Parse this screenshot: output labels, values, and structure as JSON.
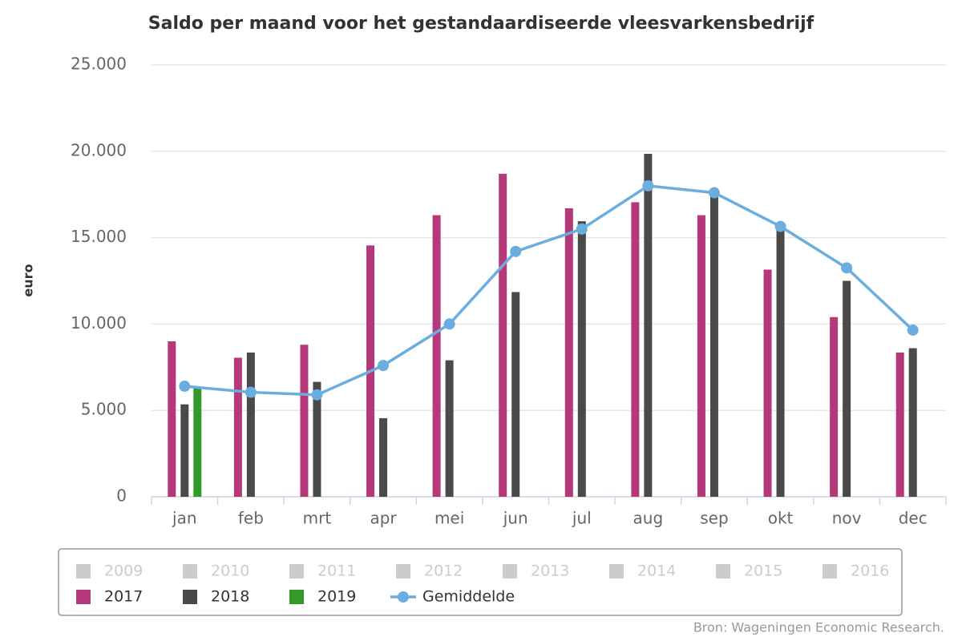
{
  "chart_data": {
    "type": "bar",
    "title": "Saldo per maand voor het gestandaardiseerde vleesvarkensbedrijf",
    "y_label": "euro",
    "source": "Bron: Wageningen Economic Research.",
    "categories": [
      "jan",
      "feb",
      "mrt",
      "apr",
      "mei",
      "jun",
      "jul",
      "aug",
      "sep",
      "okt",
      "nov",
      "dec"
    ],
    "ylim": [
      0,
      25000
    ],
    "yticks": [
      0,
      {
        "value": 5000,
        "label": "5.000"
      },
      {
        "value": 10000,
        "label": "10.000"
      },
      {
        "value": 15000,
        "label": "15.000"
      },
      {
        "value": 20000,
        "label": "20.000"
      },
      {
        "value": 25000,
        "label": "25.000"
      }
    ],
    "grid": true,
    "legend": "bottom",
    "series": [
      {
        "name": "2009",
        "type": "bar",
        "visible": false,
        "color": "#cccccc",
        "values": [
          null,
          null,
          null,
          null,
          null,
          null,
          null,
          null,
          null,
          null,
          null,
          null
        ]
      },
      {
        "name": "2010",
        "type": "bar",
        "visible": false,
        "color": "#cccccc",
        "values": [
          null,
          null,
          null,
          null,
          null,
          null,
          null,
          null,
          null,
          null,
          null,
          null
        ]
      },
      {
        "name": "2011",
        "type": "bar",
        "visible": false,
        "color": "#cccccc",
        "values": [
          null,
          null,
          null,
          null,
          null,
          null,
          null,
          null,
          null,
          null,
          null,
          null
        ]
      },
      {
        "name": "2012",
        "type": "bar",
        "visible": false,
        "color": "#cccccc",
        "values": [
          null,
          null,
          null,
          null,
          null,
          null,
          null,
          null,
          null,
          null,
          null,
          null
        ]
      },
      {
        "name": "2013",
        "type": "bar",
        "visible": false,
        "color": "#cccccc",
        "values": [
          null,
          null,
          null,
          null,
          null,
          null,
          null,
          null,
          null,
          null,
          null,
          null
        ]
      },
      {
        "name": "2014",
        "type": "bar",
        "visible": false,
        "color": "#cccccc",
        "values": [
          null,
          null,
          null,
          null,
          null,
          null,
          null,
          null,
          null,
          null,
          null,
          null
        ]
      },
      {
        "name": "2015",
        "type": "bar",
        "visible": false,
        "color": "#cccccc",
        "values": [
          null,
          null,
          null,
          null,
          null,
          null,
          null,
          null,
          null,
          null,
          null,
          null
        ]
      },
      {
        "name": "2016",
        "type": "bar",
        "visible": false,
        "color": "#cccccc",
        "values": [
          null,
          null,
          null,
          null,
          null,
          null,
          null,
          null,
          null,
          null,
          null,
          null
        ]
      },
      {
        "name": "2017",
        "type": "bar",
        "visible": true,
        "color": "#b5397a",
        "values": [
          9000,
          8050,
          8800,
          14550,
          16300,
          18700,
          16700,
          17050,
          16300,
          13150,
          10400,
          8350
        ]
      },
      {
        "name": "2018",
        "type": "bar",
        "visible": true,
        "color": "#4a4a4a",
        "values": [
          5350,
          8350,
          6650,
          4550,
          7900,
          11850,
          15950,
          19850,
          17600,
          15750,
          12500,
          8600
        ]
      },
      {
        "name": "2019",
        "type": "bar",
        "visible": true,
        "color": "#339a2a",
        "values": [
          6300,
          null,
          null,
          null,
          null,
          null,
          null,
          null,
          null,
          null,
          null,
          null
        ]
      },
      {
        "name": "Gemiddelde",
        "type": "line",
        "visible": true,
        "color": "#6aaee0",
        "values": [
          6400,
          6050,
          5900,
          7600,
          10000,
          14200,
          15500,
          18000,
          17600,
          15650,
          13250,
          9650
        ]
      }
    ]
  }
}
